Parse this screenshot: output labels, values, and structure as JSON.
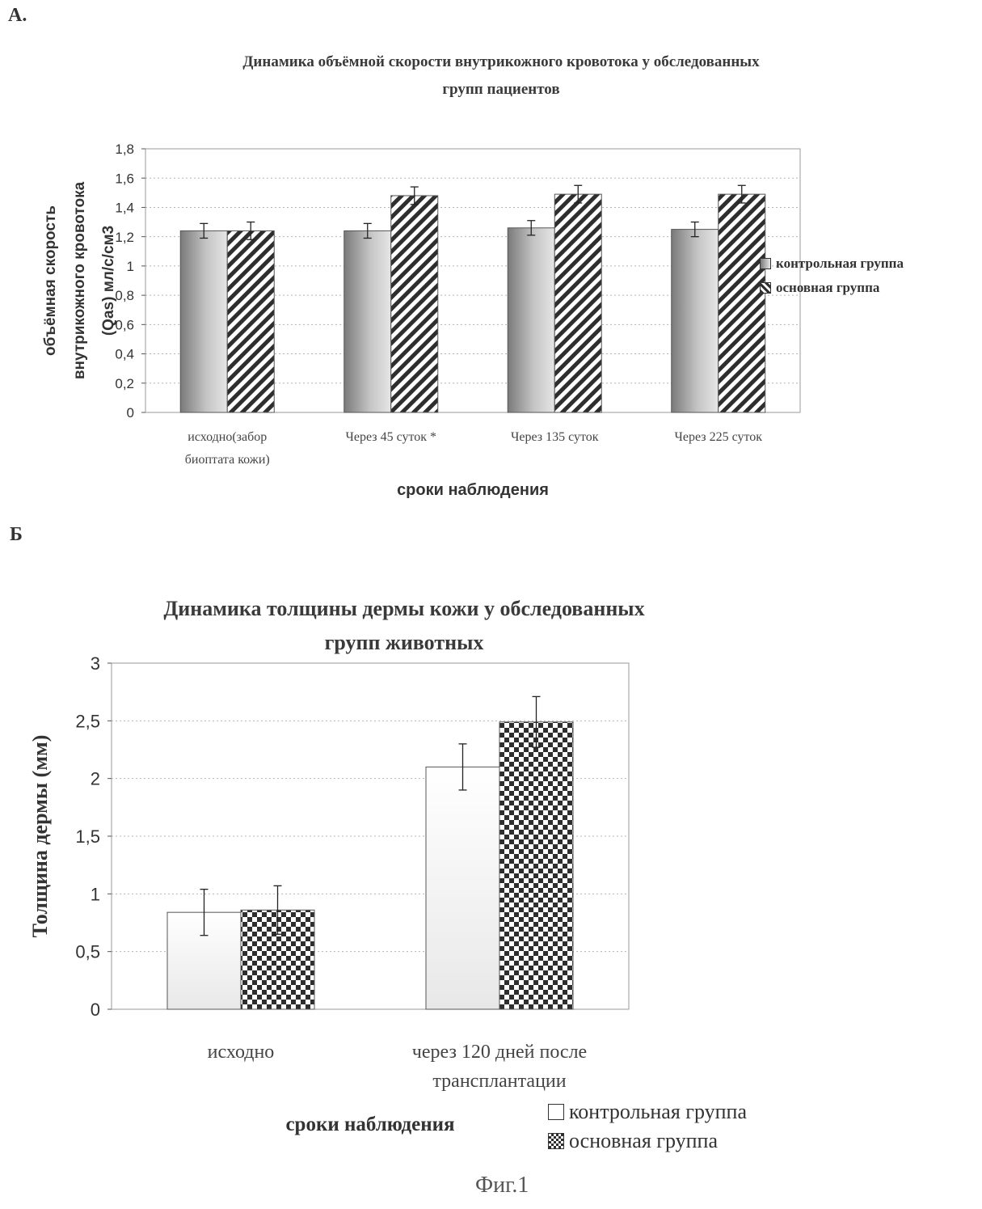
{
  "panel_a_label": "А.",
  "panel_b_label": "Б",
  "figure_caption": "Фиг.1",
  "chart_data": [
    {
      "type": "bar",
      "title": "Динамика объёмной скорости внутрикожного кровотока у обследованных групп пациентов",
      "title_lines": [
        "Динамика объёмной скорости внутрикожного кровотока у обследованных",
        "групп пациентов"
      ],
      "categories": [
        "исходно(забор биоптата кожи)",
        "Через 45 суток *",
        "Через 135 суток",
        "Через 225 суток"
      ],
      "category_lines": [
        [
          "исходно(забор",
          "биоптата кожи)"
        ],
        [
          "Через 45 суток *"
        ],
        [
          "Через 135 суток"
        ],
        [
          "Через 225 суток"
        ]
      ],
      "series": [
        {
          "name": "контрольная группа",
          "values": [
            1.24,
            1.24,
            1.26,
            1.25
          ],
          "errors": [
            0.05,
            0.05,
            0.05,
            0.05
          ],
          "color": "#c8c8c8",
          "pattern": "gradient"
        },
        {
          "name": "основная группа",
          "values": [
            1.24,
            1.48,
            1.49,
            1.49
          ],
          "errors": [
            0.06,
            0.06,
            0.06,
            0.06
          ],
          "color": "#333333",
          "pattern": "diagonal"
        }
      ],
      "xlabel": "сроки наблюдения",
      "ylabel": "объёмная скорость внутрикожного кровотока (Qas) мл/с/см3",
      "ylabel_lines": [
        "объёмная скорость",
        "внутрикожного кровотока",
        "(Qas) мл/с/см3"
      ],
      "ylim": [
        0,
        1.8
      ],
      "yticks": [
        "0",
        "0,2",
        "0,4",
        "0,6",
        "0,8",
        "1",
        "1,2",
        "1,4",
        "1,6",
        "1,8"
      ],
      "grid": true,
      "legend_position": "right"
    },
    {
      "type": "bar",
      "title": "Динамика толщины дермы кожи у обследованных групп животных",
      "title_lines": [
        "Динамика толщины дермы кожи у обследованных",
        "групп животных"
      ],
      "categories": [
        "исходно",
        "через 120 дней после трансплантации"
      ],
      "category_lines": [
        [
          "исходно"
        ],
        [
          "через 120 дней после",
          "трансплантации"
        ]
      ],
      "series": [
        {
          "name": "контрольная группа",
          "values": [
            0.84,
            2.1
          ],
          "errors": [
            0.2,
            0.2
          ],
          "color": "#ffffff",
          "pattern": "plain"
        },
        {
          "name": "основная группа",
          "values": [
            0.86,
            2.49
          ],
          "errors": [
            0.21,
            0.22
          ],
          "color": "#333333",
          "pattern": "checker"
        }
      ],
      "xlabel": "сроки наблюдения",
      "ylabel": "Толщина дермы (мм)",
      "ylim": [
        0,
        3
      ],
      "yticks": [
        "0",
        "0,5",
        "1",
        "1,5",
        "2",
        "2,5",
        "3"
      ],
      "grid": true,
      "legend_position": "bottom-right"
    }
  ]
}
